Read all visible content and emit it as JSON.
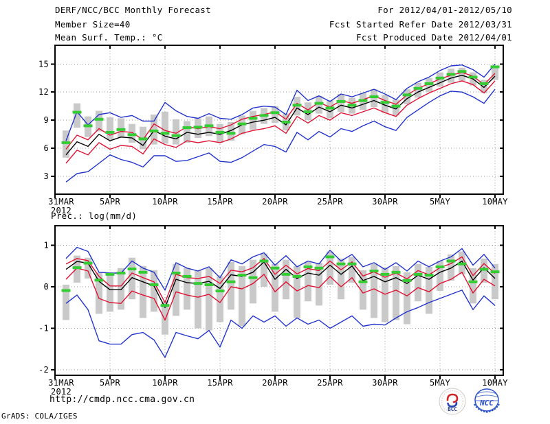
{
  "header": {
    "title": "DERF/NCC/BCC Monthly Forecast",
    "member_size": "Member Size=40",
    "valid_range": "For 2012/04/01-2012/05/10",
    "refer_date": "Fcst Started Refer Date 2012/03/31",
    "produced_date": "Fcst Produced Date 2012/04/01"
  },
  "footer": {
    "url": "http://cmdp.ncc.cma.gov.cn",
    "credit": "GrADS: COLA/IGES",
    "logo_left": "BCC",
    "logo_right": "NCC"
  },
  "colors": {
    "extreme_line": "#2233cc",
    "quartile_line": "#e01133",
    "mean_line": "#000000",
    "obs_mark": "#33cc33",
    "spread_bar": "#c9c9c9",
    "grid": "#999999",
    "frame": "#000000"
  },
  "chart_data": [
    {
      "id": "temperature",
      "type": "line",
      "title": "Mean Surf. Temp.: °C",
      "n_members": 40,
      "xlim": [
        0,
        40.75
      ],
      "ylim": [
        1.1,
        17.0
      ],
      "y_ticks": [
        3,
        6,
        9,
        12,
        15
      ],
      "x_ticks": [
        {
          "day": 0,
          "label": "31MAR",
          "sublabel": "2012"
        },
        {
          "day": 5,
          "label": "5APR"
        },
        {
          "day": 10,
          "label": "10APR"
        },
        {
          "day": 15,
          "label": "15APR"
        },
        {
          "day": 20,
          "label": "20APR"
        },
        {
          "day": 25,
          "label": "25APR"
        },
        {
          "day": 30,
          "label": "30APR"
        },
        {
          "day": 35,
          "label": "5MAY"
        },
        {
          "day": 40,
          "label": "10MAY"
        }
      ],
      "days": [
        1,
        2,
        3,
        4,
        5,
        6,
        7,
        8,
        9,
        10,
        11,
        12,
        13,
        14,
        15,
        16,
        17,
        18,
        19,
        20,
        21,
        22,
        23,
        24,
        25,
        26,
        27,
        28,
        29,
        30,
        31,
        32,
        33,
        34,
        35,
        36,
        37,
        38,
        39,
        40
      ],
      "series": [
        {
          "name": "ensemble-max",
          "color": "#2233cc",
          "values": [
            6.8,
            9.9,
            8.5,
            9.6,
            9.8,
            9.3,
            9.5,
            8.9,
            8.9,
            10.9,
            10.0,
            9.4,
            9.2,
            9.7,
            9.2,
            9.1,
            9.6,
            10.3,
            10.5,
            10.4,
            9.6,
            12.2,
            11.1,
            11.6,
            11.0,
            11.8,
            11.5,
            11.9,
            12.3,
            11.8,
            11.2,
            12.4,
            13.1,
            13.6,
            14.3,
            14.8,
            14.9,
            14.4,
            13.6,
            15.0
          ]
        },
        {
          "name": "upper-quartile",
          "color": "#e01133",
          "values": [
            5.9,
            7.4,
            6.9,
            8.1,
            7.4,
            7.8,
            7.7,
            6.9,
            8.6,
            7.9,
            7.6,
            8.3,
            8.1,
            8.3,
            8.1,
            8.5,
            9.1,
            9.4,
            9.6,
            9.9,
            9.1,
            10.8,
            10.1,
            10.9,
            10.4,
            11.1,
            10.8,
            11.2,
            11.6,
            11.1,
            10.7,
            11.7,
            12.4,
            12.9,
            13.4,
            13.8,
            14.1,
            13.7,
            12.8,
            14.0
          ]
        },
        {
          "name": "ensemble-mean",
          "color": "#000000",
          "values": [
            5.3,
            6.7,
            6.2,
            7.5,
            6.8,
            7.2,
            7.1,
            6.3,
            7.9,
            7.3,
            7.0,
            7.7,
            7.5,
            7.7,
            7.5,
            7.9,
            8.5,
            8.8,
            9.0,
            9.3,
            8.5,
            10.3,
            9.6,
            10.4,
            9.9,
            10.6,
            10.3,
            10.7,
            11.1,
            10.6,
            10.2,
            11.3,
            12.0,
            12.5,
            13.0,
            13.5,
            13.8,
            13.4,
            12.5,
            13.7
          ]
        },
        {
          "name": "lower-quartile",
          "color": "#e01133",
          "values": [
            4.4,
            5.8,
            5.3,
            6.6,
            5.9,
            6.3,
            6.2,
            5.4,
            7.0,
            6.4,
            6.1,
            6.8,
            6.6,
            6.8,
            6.6,
            7.0,
            7.6,
            7.9,
            8.1,
            8.4,
            7.6,
            9.4,
            8.7,
            9.5,
            9.0,
            9.8,
            9.5,
            9.9,
            10.3,
            9.8,
            9.4,
            10.6,
            11.3,
            11.9,
            12.4,
            12.9,
            13.2,
            12.8,
            11.9,
            13.2
          ]
        },
        {
          "name": "ensemble-min",
          "color": "#2233cc",
          "values": [
            2.4,
            3.3,
            3.5,
            4.4,
            5.3,
            4.8,
            4.5,
            4.0,
            5.2,
            5.2,
            4.6,
            4.7,
            5.1,
            5.5,
            4.6,
            4.5,
            5.0,
            5.7,
            6.4,
            6.2,
            5.6,
            7.7,
            6.9,
            7.8,
            7.2,
            8.1,
            7.8,
            8.4,
            8.9,
            8.3,
            7.9,
            9.3,
            10.1,
            10.9,
            11.6,
            12.1,
            12.0,
            11.5,
            10.8,
            12.3
          ]
        }
      ],
      "spread_bars": {
        "name": "member-spread",
        "color": "#c9c9c9",
        "lo": [
          5.0,
          8.2,
          7.2,
          7.8,
          6.9,
          7.1,
          6.6,
          5.9,
          6.4,
          6.5,
          6.4,
          6.6,
          7.1,
          7.3,
          6.6,
          6.8,
          7.5,
          8.0,
          8.6,
          8.7,
          7.9,
          9.5,
          9.0,
          9.7,
          9.2,
          9.9,
          9.7,
          10.1,
          10.4,
          9.8,
          9.5,
          10.7,
          11.4,
          12.0,
          12.6,
          13.0,
          13.2,
          12.7,
          11.9,
          13.3
        ],
        "hi": [
          7.9,
          10.8,
          9.4,
          10.0,
          9.3,
          9.2,
          8.6,
          8.3,
          9.6,
          9.9,
          9.1,
          8.9,
          9.2,
          9.4,
          8.6,
          8.8,
          9.5,
          10.0,
          10.3,
          10.5,
          9.7,
          11.5,
          10.9,
          11.6,
          11.1,
          11.8,
          11.4,
          11.9,
          12.3,
          11.7,
          11.2,
          12.3,
          13.0,
          13.5,
          14.1,
          14.5,
          14.6,
          14.1,
          13.3,
          14.8
        ]
      },
      "obs_marks": {
        "name": "observation",
        "color": "#33cc33",
        "values": [
          6.6,
          9.85,
          8.4,
          9.1,
          7.7,
          8.0,
          7.45,
          7.0,
          7.85,
          7.6,
          7.35,
          8.2,
          8.25,
          8.4,
          7.7,
          7.6,
          8.6,
          9.2,
          9.5,
          9.8,
          8.8,
          10.6,
          9.9,
          10.8,
          10.3,
          11.0,
          10.6,
          11.1,
          11.5,
          10.9,
          10.5,
          11.7,
          12.4,
          12.9,
          13.5,
          13.9,
          14.2,
          13.6,
          12.9,
          14.7
        ]
      }
    },
    {
      "id": "precipitation",
      "type": "line",
      "title": "Prec.: log(mm/d)",
      "n_members": 40,
      "xlim": [
        0,
        40.75
      ],
      "ylim": [
        -2.13,
        1.47
      ],
      "y_ticks": [
        -2,
        -1,
        0,
        1
      ],
      "x_ticks": [
        {
          "day": 0,
          "label": "31MAR",
          "sublabel": "2012"
        },
        {
          "day": 5,
          "label": "5APR"
        },
        {
          "day": 10,
          "label": "10APR"
        },
        {
          "day": 15,
          "label": "15APR"
        },
        {
          "day": 20,
          "label": "20APR"
        },
        {
          "day": 25,
          "label": "25APR"
        },
        {
          "day": 30,
          "label": "30APR"
        },
        {
          "day": 35,
          "label": "5MAY"
        },
        {
          "day": 40,
          "label": "10MAY"
        }
      ],
      "days": [
        1,
        2,
        3,
        4,
        5,
        6,
        7,
        8,
        9,
        10,
        11,
        12,
        13,
        14,
        15,
        16,
        17,
        18,
        19,
        20,
        21,
        22,
        23,
        24,
        25,
        26,
        27,
        28,
        29,
        30,
        31,
        32,
        33,
        34,
        35,
        36,
        37,
        38,
        39,
        40
      ],
      "series": [
        {
          "name": "ensemble-max",
          "color": "#2233cc",
          "values": [
            0.68,
            0.95,
            0.85,
            0.35,
            0.33,
            0.33,
            0.62,
            0.45,
            0.35,
            -0.08,
            0.58,
            0.45,
            0.38,
            0.48,
            0.22,
            0.65,
            0.55,
            0.72,
            0.82,
            0.52,
            0.75,
            0.48,
            0.62,
            0.55,
            0.88,
            0.62,
            0.78,
            0.48,
            0.58,
            0.42,
            0.58,
            0.38,
            0.62,
            0.48,
            0.62,
            0.72,
            0.92,
            0.52,
            0.78,
            0.45
          ]
        },
        {
          "name": "upper-quartile",
          "color": "#e01133",
          "values": [
            0.55,
            0.68,
            0.63,
            0.25,
            0.02,
            0.02,
            0.33,
            0.22,
            0.12,
            -0.38,
            0.3,
            0.22,
            0.2,
            0.25,
            0.08,
            0.4,
            0.36,
            0.46,
            0.68,
            0.3,
            0.52,
            0.31,
            0.44,
            0.39,
            0.62,
            0.41,
            0.6,
            0.26,
            0.36,
            0.23,
            0.33,
            0.19,
            0.39,
            0.29,
            0.46,
            0.56,
            0.72,
            0.27,
            0.56,
            0.32
          ]
        },
        {
          "name": "ensemble-mean",
          "color": "#000000",
          "values": [
            0.42,
            0.61,
            0.57,
            0.13,
            -0.07,
            -0.07,
            0.22,
            0.12,
            0.02,
            -0.5,
            0.18,
            0.1,
            0.08,
            0.13,
            -0.04,
            0.29,
            0.25,
            0.35,
            0.6,
            0.18,
            0.42,
            0.2,
            0.33,
            0.28,
            0.52,
            0.3,
            0.5,
            0.15,
            0.25,
            0.12,
            0.22,
            0.08,
            0.28,
            0.18,
            0.35,
            0.45,
            0.62,
            0.16,
            0.46,
            0.2
          ]
        },
        {
          "name": "lower-quartile",
          "color": "#e01133",
          "values": [
            0.18,
            0.45,
            0.38,
            -0.28,
            -0.38,
            -0.4,
            -0.1,
            -0.2,
            -0.28,
            -0.8,
            -0.12,
            -0.2,
            -0.25,
            -0.18,
            -0.38,
            0.0,
            -0.05,
            0.08,
            0.3,
            -0.12,
            0.12,
            -0.1,
            0.03,
            -0.02,
            0.25,
            0.0,
            0.22,
            -0.15,
            -0.05,
            -0.18,
            -0.08,
            -0.22,
            -0.02,
            -0.12,
            0.08,
            0.18,
            0.35,
            -0.15,
            0.18,
            0.02
          ]
        },
        {
          "name": "ensemble-min",
          "color": "#2233cc",
          "values": [
            -0.4,
            -0.2,
            -0.55,
            -1.3,
            -1.38,
            -1.38,
            -1.15,
            -1.1,
            -1.28,
            -1.7,
            -1.1,
            -1.18,
            -1.25,
            -1.05,
            -1.45,
            -0.8,
            -1.0,
            -0.7,
            -0.85,
            -0.7,
            -0.95,
            -0.75,
            -0.9,
            -0.8,
            -1.0,
            -0.85,
            -0.7,
            -0.95,
            -0.9,
            -0.92,
            -0.75,
            -0.6,
            -0.5,
            -0.38,
            -0.28,
            -0.18,
            -0.08,
            -0.55,
            -0.22,
            -0.45
          ]
        }
      ],
      "spread_bars": {
        "name": "member-spread",
        "color": "#c9c9c9",
        "lo": [
          -0.8,
          0.1,
          0.2,
          -0.65,
          -0.6,
          -0.55,
          -0.3,
          -0.75,
          -0.6,
          -1.15,
          -0.7,
          -0.55,
          -1.0,
          -1.05,
          -0.85,
          -0.55,
          -0.95,
          -0.4,
          0.0,
          -0.6,
          -0.3,
          -0.75,
          -0.35,
          -0.45,
          0.05,
          -0.3,
          0.1,
          -0.55,
          -0.75,
          -0.85,
          -0.8,
          -0.9,
          -0.35,
          -0.65,
          -0.1,
          0.15,
          0.3,
          -0.4,
          0.1,
          -0.3
        ],
        "hi": [
          0.05,
          0.75,
          0.7,
          0.35,
          0.3,
          0.45,
          0.7,
          0.5,
          0.4,
          -0.35,
          0.55,
          0.45,
          0.4,
          0.45,
          0.25,
          0.6,
          0.5,
          0.65,
          0.8,
          0.55,
          0.65,
          0.5,
          0.6,
          0.58,
          0.85,
          0.68,
          0.72,
          0.4,
          0.55,
          0.45,
          0.5,
          0.35,
          0.55,
          0.48,
          0.62,
          0.78,
          0.85,
          0.45,
          0.68,
          0.55
        ]
      },
      "obs_marks": {
        "name": "observation",
        "color": "#33cc33",
        "values": [
          -0.09,
          0.46,
          0.57,
          0.16,
          0.3,
          0.33,
          0.43,
          0.35,
          0.05,
          -0.45,
          0.33,
          0.25,
          0.08,
          0.05,
          -0.1,
          0.12,
          0.28,
          0.22,
          0.62,
          0.45,
          0.3,
          0.25,
          0.48,
          0.45,
          0.72,
          0.55,
          0.55,
          0.12,
          0.38,
          0.3,
          0.35,
          0.15,
          0.3,
          0.28,
          0.48,
          0.62,
          0.55,
          0.12,
          0.42,
          0.36
        ]
      }
    }
  ]
}
